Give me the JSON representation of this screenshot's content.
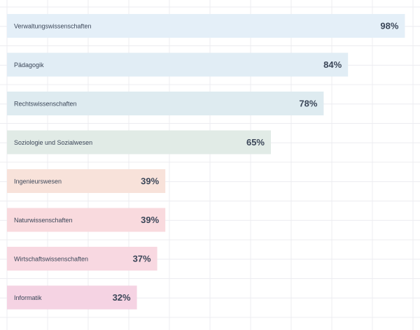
{
  "chart_data": {
    "type": "bar",
    "orientation": "horizontal",
    "title": "",
    "xlabel": "",
    "ylabel": "",
    "xlim": [
      0,
      100
    ],
    "grid": true,
    "legend": "none",
    "categories": [
      "Verwaltungswissenschaften",
      "Pädagogik",
      "Rechtswissenschaften",
      "Soziologie und Sozialwesen",
      "Ingenieurswesen",
      "Naturwissenschaften",
      "Wirtschaftswissenschaften",
      "Informatik"
    ],
    "values": [
      98,
      84,
      78,
      65,
      39,
      39,
      37,
      32
    ],
    "value_labels": [
      "98%",
      "84%",
      "78%",
      "65%",
      "39%",
      "39%",
      "37%",
      "32%"
    ],
    "colors": [
      "#e4eff8",
      "#e1edf5",
      "#deebf0",
      "#e1ebe6",
      "#f8e2da",
      "#f9dade",
      "#f8d8e1",
      "#f5d3e3"
    ],
    "label_color": "#3b4658",
    "value_color": "#3b4658",
    "grid_color": "#ececf0"
  }
}
